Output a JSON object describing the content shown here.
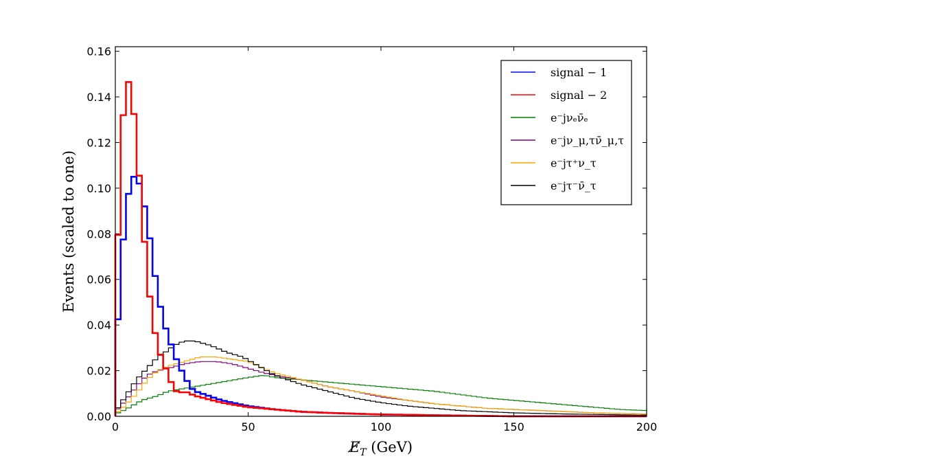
{
  "chart_data": {
    "type": "line",
    "style": "step-histogram",
    "title": "",
    "xlabel": "E̸_T (GeV)",
    "ylabel": "Events (scaled to one)",
    "xlim": [
      0,
      200
    ],
    "ylim": [
      0,
      0.162
    ],
    "x_ticks": [
      0,
      50,
      100,
      150,
      200
    ],
    "x_tick_labels": [
      "0",
      "50",
      "100",
      "150",
      "200"
    ],
    "y_ticks": [
      0,
      0.02,
      0.04,
      0.06,
      0.08,
      0.1,
      0.12,
      0.14,
      0.16
    ],
    "y_tick_labels": [
      "0.00",
      "0.02",
      "0.04",
      "0.06",
      "0.08",
      "0.10",
      "0.12",
      "0.14",
      "0.16"
    ],
    "grid": false,
    "legend_position": "top-right",
    "bin_width": 2,
    "series": [
      {
        "name": "signal − 1",
        "color": "#0000ff",
        "thick": true,
        "anchors": [
          [
            0,
            0.022
          ],
          [
            2,
            0.063
          ],
          [
            4,
            0.092
          ],
          [
            6,
            0.103
          ],
          [
            8,
            0.107
          ],
          [
            10,
            0.097
          ],
          [
            12,
            0.087
          ],
          [
            14,
            0.069
          ],
          [
            16,
            0.054
          ],
          [
            18,
            0.042
          ],
          [
            20,
            0.035
          ],
          [
            22,
            0.028
          ],
          [
            24,
            0.022
          ],
          [
            26,
            0.018
          ],
          [
            28,
            0.013
          ],
          [
            30,
            0.011
          ],
          [
            40,
            0.007
          ],
          [
            50,
            0.0045
          ],
          [
            60,
            0.003
          ],
          [
            70,
            0.002
          ],
          [
            80,
            0.0015
          ],
          [
            100,
            0.0008
          ],
          [
            130,
            0.0003
          ],
          [
            150,
            0.0
          ],
          [
            200,
            0.0
          ]
        ]
      },
      {
        "name": "signal − 2",
        "color": "#ff0000",
        "thick": true,
        "anchors": [
          [
            0,
            0.043
          ],
          [
            2,
            0.116
          ],
          [
            4,
            0.148
          ],
          [
            6,
            0.145
          ],
          [
            8,
            0.12
          ],
          [
            10,
            0.091
          ],
          [
            12,
            0.062
          ],
          [
            14,
            0.043
          ],
          [
            16,
            0.03
          ],
          [
            18,
            0.024
          ],
          [
            20,
            0.018
          ],
          [
            22,
            0.012
          ],
          [
            24,
            0.01
          ],
          [
            26,
            0.011
          ],
          [
            28,
            0.01
          ],
          [
            30,
            0.009
          ],
          [
            40,
            0.006
          ],
          [
            50,
            0.004
          ],
          [
            60,
            0.003
          ],
          [
            70,
            0.002
          ],
          [
            80,
            0.0015
          ],
          [
            100,
            0.0008
          ],
          [
            130,
            0.0003
          ],
          [
            150,
            0.0
          ],
          [
            200,
            0.0
          ]
        ]
      },
      {
        "name": "e⁻ j ν_e ν̄_e",
        "color": "#008000",
        "thick": false,
        "anchors": [
          [
            0,
            0.001
          ],
          [
            4,
            0.003
          ],
          [
            10,
            0.007
          ],
          [
            16,
            0.009
          ],
          [
            20,
            0.011
          ],
          [
            30,
            0.013
          ],
          [
            40,
            0.015
          ],
          [
            50,
            0.017
          ],
          [
            56,
            0.018
          ],
          [
            60,
            0.017
          ],
          [
            70,
            0.016
          ],
          [
            80,
            0.015
          ],
          [
            90,
            0.014
          ],
          [
            100,
            0.013
          ],
          [
            110,
            0.012
          ],
          [
            120,
            0.011
          ],
          [
            130,
            0.0095
          ],
          [
            140,
            0.008
          ],
          [
            150,
            0.007
          ],
          [
            160,
            0.006
          ],
          [
            170,
            0.005
          ],
          [
            180,
            0.004
          ],
          [
            190,
            0.003
          ],
          [
            200,
            0.0025
          ]
        ]
      },
      {
        "name": "e⁻ j ν_μ,τ ν̄_μ,τ",
        "color": "#800080",
        "thick": false,
        "anchors": [
          [
            0,
            0.002
          ],
          [
            4,
            0.007
          ],
          [
            8,
            0.013
          ],
          [
            12,
            0.018
          ],
          [
            16,
            0.02
          ],
          [
            20,
            0.021
          ],
          [
            26,
            0.023
          ],
          [
            32,
            0.024
          ],
          [
            38,
            0.024
          ],
          [
            44,
            0.023
          ],
          [
            50,
            0.021
          ],
          [
            56,
            0.019
          ],
          [
            60,
            0.018
          ],
          [
            70,
            0.016
          ],
          [
            80,
            0.013
          ],
          [
            90,
            0.011
          ],
          [
            100,
            0.0085
          ],
          [
            110,
            0.007
          ],
          [
            120,
            0.0055
          ],
          [
            130,
            0.0045
          ],
          [
            140,
            0.0035
          ],
          [
            150,
            0.003
          ],
          [
            160,
            0.0025
          ],
          [
            170,
            0.002
          ],
          [
            180,
            0.0015
          ],
          [
            200,
            0.001
          ]
        ]
      },
      {
        "name": "e⁻ j τ⁺ ν_τ",
        "color": "#ffa500",
        "thick": false,
        "anchors": [
          [
            0,
            0.001
          ],
          [
            4,
            0.005
          ],
          [
            8,
            0.01
          ],
          [
            12,
            0.016
          ],
          [
            16,
            0.02
          ],
          [
            20,
            0.022
          ],
          [
            26,
            0.024
          ],
          [
            32,
            0.026
          ],
          [
            38,
            0.026
          ],
          [
            44,
            0.025
          ],
          [
            50,
            0.024
          ],
          [
            56,
            0.021
          ],
          [
            60,
            0.019
          ],
          [
            70,
            0.016
          ],
          [
            80,
            0.013
          ],
          [
            90,
            0.011
          ],
          [
            100,
            0.009
          ],
          [
            110,
            0.007
          ],
          [
            120,
            0.0055
          ],
          [
            130,
            0.0045
          ],
          [
            140,
            0.0035
          ],
          [
            150,
            0.003
          ],
          [
            160,
            0.0025
          ],
          [
            170,
            0.002
          ],
          [
            180,
            0.0015
          ],
          [
            200,
            0.001
          ]
        ]
      },
      {
        "name": "e⁻ j τ⁻ ν̄_τ",
        "color": "#000000",
        "thick": false,
        "anchors": [
          [
            0,
            0.002
          ],
          [
            4,
            0.009
          ],
          [
            8,
            0.016
          ],
          [
            12,
            0.021
          ],
          [
            16,
            0.026
          ],
          [
            20,
            0.029
          ],
          [
            22,
            0.031
          ],
          [
            26,
            0.033
          ],
          [
            30,
            0.033
          ],
          [
            36,
            0.031
          ],
          [
            42,
            0.028
          ],
          [
            48,
            0.026
          ],
          [
            54,
            0.022
          ],
          [
            60,
            0.018
          ],
          [
            70,
            0.014
          ],
          [
            80,
            0.011
          ],
          [
            90,
            0.008
          ],
          [
            100,
            0.006
          ],
          [
            110,
            0.0045
          ],
          [
            120,
            0.0035
          ],
          [
            130,
            0.0025
          ],
          [
            140,
            0.002
          ],
          [
            150,
            0.0015
          ],
          [
            170,
            0.001
          ],
          [
            200,
            0.0005
          ]
        ]
      }
    ]
  },
  "legend": {
    "entries": [
      {
        "text": "signal − 1",
        "color": "#0000ff"
      },
      {
        "text": "signal − 2",
        "color": "#ff0000"
      },
      {
        "text": "e⁻jνₑν̄ₑ",
        "color": "#008000"
      },
      {
        "text": "e⁻jν_μ,τν̄_μ,τ",
        "color": "#800080"
      },
      {
        "text": "e⁻jτ⁺ν_τ",
        "color": "#ffa500"
      },
      {
        "text": "e⁻jτ⁻ν̄_τ",
        "color": "#000000"
      }
    ]
  }
}
